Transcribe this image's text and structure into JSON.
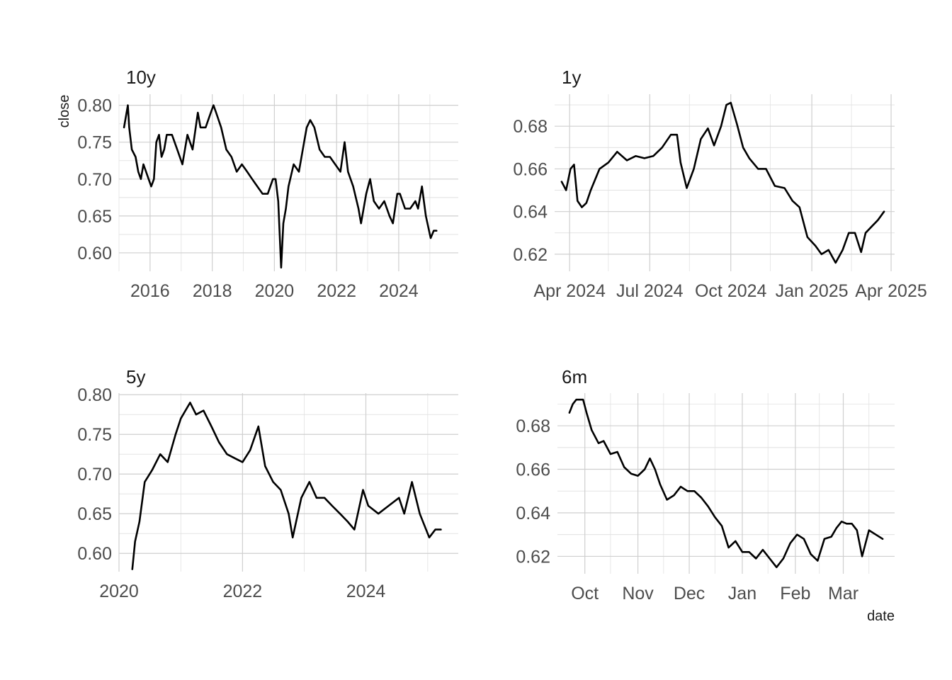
{
  "figure": {
    "ylabel": "close",
    "xlabel": "date",
    "background": "#ffffff",
    "grid_color": "#cfcfcf",
    "line_color": "#000000"
  },
  "chart_data": [
    {
      "type": "line",
      "title": "10y",
      "ylim": [
        0.575,
        0.815
      ],
      "xlim": [
        "2015-01-01",
        "2025-12-01"
      ],
      "yticks": [
        0.6,
        0.65,
        0.7,
        0.75,
        0.8
      ],
      "ytick_labels": [
        "0.60",
        "0.65",
        "0.70",
        "0.75",
        "0.80"
      ],
      "xticks": [
        "2016-01-01",
        "2018-01-01",
        "2020-01-01",
        "2022-01-01",
        "2024-01-01"
      ],
      "xtick_labels": [
        "2016",
        "2018",
        "2020",
        "2022",
        "2024"
      ],
      "xticks_minor": [
        "2015-01-01",
        "2017-01-01",
        "2019-01-01",
        "2021-01-01",
        "2023-01-01",
        "2025-01-01"
      ],
      "grid": true,
      "series": [
        {
          "x": [
            "2015-03-01",
            "2015-04-15",
            "2015-05-01",
            "2015-06-01",
            "2015-07-15",
            "2015-08-15",
            "2015-09-15",
            "2015-10-15",
            "2015-11-15",
            "2015-12-15",
            "2016-01-15",
            "2016-02-15",
            "2016-03-15",
            "2016-04-15",
            "2016-05-15",
            "2016-06-15",
            "2016-07-15",
            "2016-09-15",
            "2016-11-15",
            "2017-01-15",
            "2017-03-15",
            "2017-05-15",
            "2017-07-15",
            "2017-08-15",
            "2017-10-15",
            "2017-12-15",
            "2018-01-15",
            "2018-02-15",
            "2018-04-15",
            "2018-06-15",
            "2018-08-15",
            "2018-10-15",
            "2018-12-15",
            "2019-02-15",
            "2019-04-15",
            "2019-06-15",
            "2019-08-15",
            "2019-10-15",
            "2019-12-15",
            "2020-01-15",
            "2020-02-15",
            "2020-03-20",
            "2020-04-15",
            "2020-05-15",
            "2020-06-15",
            "2020-08-15",
            "2020-10-15",
            "2020-12-15",
            "2021-01-15",
            "2021-02-25",
            "2021-04-15",
            "2021-06-15",
            "2021-08-15",
            "2021-10-15",
            "2021-12-15",
            "2022-02-15",
            "2022-04-05",
            "2022-05-15",
            "2022-07-15",
            "2022-09-15",
            "2022-10-15",
            "2022-12-15",
            "2023-01-30",
            "2023-03-15",
            "2023-05-15",
            "2023-07-15",
            "2023-09-15",
            "2023-10-25",
            "2023-12-15",
            "2024-01-15",
            "2024-03-15",
            "2024-05-15",
            "2024-07-15",
            "2024-08-15",
            "2024-09-30",
            "2024-11-15",
            "2025-01-10",
            "2025-02-15",
            "2025-03-20"
          ],
          "y": [
            0.77,
            0.8,
            0.77,
            0.74,
            0.73,
            0.71,
            0.7,
            0.72,
            0.71,
            0.7,
            0.69,
            0.7,
            0.75,
            0.76,
            0.73,
            0.74,
            0.76,
            0.76,
            0.74,
            0.72,
            0.76,
            0.74,
            0.79,
            0.77,
            0.77,
            0.79,
            0.8,
            0.79,
            0.77,
            0.74,
            0.73,
            0.71,
            0.72,
            0.71,
            0.7,
            0.69,
            0.68,
            0.68,
            0.7,
            0.7,
            0.67,
            0.58,
            0.64,
            0.66,
            0.69,
            0.72,
            0.71,
            0.75,
            0.77,
            0.78,
            0.77,
            0.74,
            0.73,
            0.73,
            0.72,
            0.71,
            0.75,
            0.71,
            0.69,
            0.66,
            0.64,
            0.68,
            0.7,
            0.67,
            0.66,
            0.67,
            0.65,
            0.64,
            0.68,
            0.68,
            0.66,
            0.66,
            0.67,
            0.66,
            0.69,
            0.65,
            0.62,
            0.63,
            0.63
          ]
        }
      ]
    },
    {
      "type": "line",
      "title": "1y",
      "ylim": [
        0.612,
        0.695
      ],
      "xlim": [
        "2024-03-15",
        "2025-04-05"
      ],
      "yticks": [
        0.62,
        0.64,
        0.66,
        0.68
      ],
      "ytick_labels": [
        "0.62",
        "0.64",
        "0.66",
        "0.68"
      ],
      "xticks": [
        "2024-04-01",
        "2024-07-01",
        "2024-10-01",
        "2025-01-01",
        "2025-04-01"
      ],
      "xtick_labels": [
        "Apr 2024",
        "Jul 2024",
        "Oct 2024",
        "Jan 2025",
        "Apr 2025"
      ],
      "xticks_minor": [
        "2024-05-15",
        "2024-08-15",
        "2024-11-15",
        "2025-02-15"
      ],
      "grid": true,
      "series": [
        {
          "x": [
            "2024-03-23",
            "2024-03-28",
            "2024-04-02",
            "2024-04-06",
            "2024-04-10",
            "2024-04-15",
            "2024-04-20",
            "2024-04-25",
            "2024-05-05",
            "2024-05-15",
            "2024-05-25",
            "2024-06-05",
            "2024-06-15",
            "2024-06-25",
            "2024-07-05",
            "2024-07-15",
            "2024-07-25",
            "2024-08-01",
            "2024-08-05",
            "2024-08-12",
            "2024-08-20",
            "2024-08-28",
            "2024-09-05",
            "2024-09-12",
            "2024-09-20",
            "2024-09-26",
            "2024-10-01",
            "2024-10-08",
            "2024-10-15",
            "2024-10-22",
            "2024-11-01",
            "2024-11-10",
            "2024-11-20",
            "2024-12-01",
            "2024-12-10",
            "2024-12-18",
            "2024-12-27",
            "2025-01-05",
            "2025-01-12",
            "2025-01-20",
            "2025-01-28",
            "2025-02-05",
            "2025-02-12",
            "2025-02-19",
            "2025-02-26",
            "2025-03-03",
            "2025-03-10",
            "2025-03-17",
            "2025-03-24"
          ],
          "y": [
            0.654,
            0.65,
            0.66,
            0.662,
            0.645,
            0.642,
            0.644,
            0.65,
            0.66,
            0.663,
            0.668,
            0.664,
            0.666,
            0.665,
            0.666,
            0.67,
            0.676,
            0.676,
            0.663,
            0.651,
            0.66,
            0.674,
            0.679,
            0.671,
            0.68,
            0.69,
            0.691,
            0.681,
            0.67,
            0.665,
            0.66,
            0.66,
            0.652,
            0.651,
            0.645,
            0.642,
            0.628,
            0.624,
            0.62,
            0.622,
            0.616,
            0.622,
            0.63,
            0.63,
            0.621,
            0.63,
            0.633,
            0.636,
            0.64
          ]
        }
      ]
    },
    {
      "type": "line",
      "title": "5y",
      "ylim": [
        0.577,
        0.802
      ],
      "xlim": [
        "2020-01-01",
        "2025-07-01"
      ],
      "yticks": [
        0.6,
        0.65,
        0.7,
        0.75,
        0.8
      ],
      "ytick_labels": [
        "0.60",
        "0.65",
        "0.70",
        "0.75",
        "0.80"
      ],
      "xticks": [
        "2020-01-01",
        "2022-01-01",
        "2024-01-01"
      ],
      "xtick_labels": [
        "2020",
        "2022",
        "2024"
      ],
      "xticks_minor": [
        "2021-01-01",
        "2023-01-01",
        "2025-01-01"
      ],
      "grid": true,
      "series": [
        {
          "x": [
            "2020-03-20",
            "2020-04-05",
            "2020-05-01",
            "2020-06-01",
            "2020-07-15",
            "2020-09-01",
            "2020-10-15",
            "2020-12-01",
            "2021-01-01",
            "2021-02-25",
            "2021-04-01",
            "2021-05-15",
            "2021-07-01",
            "2021-08-15",
            "2021-10-01",
            "2021-11-15",
            "2022-01-01",
            "2022-02-15",
            "2022-04-05",
            "2022-05-15",
            "2022-07-01",
            "2022-08-15",
            "2022-10-01",
            "2022-10-25",
            "2022-12-15",
            "2023-02-01",
            "2023-03-15",
            "2023-05-01",
            "2023-06-15",
            "2023-08-01",
            "2023-09-15",
            "2023-10-25",
            "2023-12-15",
            "2024-01-15",
            "2024-03-15",
            "2024-05-15",
            "2024-07-15",
            "2024-08-15",
            "2024-09-30",
            "2024-11-15",
            "2025-01-10",
            "2025-02-15",
            "2025-03-20"
          ],
          "y": [
            0.58,
            0.615,
            0.64,
            0.69,
            0.705,
            0.725,
            0.715,
            0.75,
            0.77,
            0.79,
            0.775,
            0.78,
            0.76,
            0.74,
            0.725,
            0.72,
            0.715,
            0.73,
            0.76,
            0.71,
            0.69,
            0.68,
            0.65,
            0.62,
            0.67,
            0.69,
            0.67,
            0.67,
            0.66,
            0.65,
            0.64,
            0.63,
            0.68,
            0.66,
            0.65,
            0.66,
            0.67,
            0.65,
            0.69,
            0.65,
            0.62,
            0.63,
            0.63
          ]
        }
      ]
    },
    {
      "type": "line",
      "title": "6m",
      "ylim": [
        0.612,
        0.695
      ],
      "xlim": [
        "2024-09-15",
        "2025-03-31"
      ],
      "yticks": [
        0.62,
        0.64,
        0.66,
        0.68
      ],
      "ytick_labels": [
        "0.62",
        "0.64",
        "0.66",
        "0.68"
      ],
      "xticks": [
        "2024-10-01",
        "2024-11-01",
        "2024-12-01",
        "2025-01-01",
        "2025-02-01",
        "2025-03-01"
      ],
      "xtick_labels": [
        "Oct",
        "Nov",
        "Dec",
        "Jan",
        "Feb",
        "Mar"
      ],
      "xticks_minor": [
        "2024-10-16",
        "2024-11-16",
        "2024-12-16",
        "2025-01-16",
        "2025-02-15",
        "2025-03-16"
      ],
      "grid": true,
      "series": [
        {
          "x": [
            "2024-09-22",
            "2024-09-24",
            "2024-09-26",
            "2024-09-30",
            "2024-10-02",
            "2024-10-05",
            "2024-10-09",
            "2024-10-12",
            "2024-10-16",
            "2024-10-20",
            "2024-10-24",
            "2024-10-28",
            "2024-11-01",
            "2024-11-05",
            "2024-11-08",
            "2024-11-11",
            "2024-11-14",
            "2024-11-18",
            "2024-11-22",
            "2024-11-26",
            "2024-11-30",
            "2024-12-04",
            "2024-12-08",
            "2024-12-12",
            "2024-12-16",
            "2024-12-20",
            "2024-12-24",
            "2024-12-28",
            "2025-01-01",
            "2025-01-05",
            "2025-01-09",
            "2025-01-13",
            "2025-01-17",
            "2025-01-21",
            "2025-01-25",
            "2025-01-29",
            "2025-02-02",
            "2025-02-06",
            "2025-02-10",
            "2025-02-14",
            "2025-02-18",
            "2025-02-22",
            "2025-02-25",
            "2025-02-28",
            "2025-03-03",
            "2025-03-06",
            "2025-03-09",
            "2025-03-12",
            "2025-03-16",
            "2025-03-20",
            "2025-03-24"
          ],
          "y": [
            0.686,
            0.69,
            0.692,
            0.692,
            0.686,
            0.678,
            0.672,
            0.673,
            0.667,
            0.668,
            0.661,
            0.658,
            0.657,
            0.66,
            0.665,
            0.66,
            0.653,
            0.646,
            0.648,
            0.652,
            0.65,
            0.65,
            0.647,
            0.643,
            0.638,
            0.634,
            0.624,
            0.627,
            0.622,
            0.622,
            0.619,
            0.623,
            0.619,
            0.615,
            0.619,
            0.626,
            0.63,
            0.628,
            0.621,
            0.618,
            0.628,
            0.629,
            0.633,
            0.636,
            0.635,
            0.635,
            0.632,
            0.62,
            0.632,
            0.63,
            0.628
          ]
        }
      ]
    }
  ]
}
